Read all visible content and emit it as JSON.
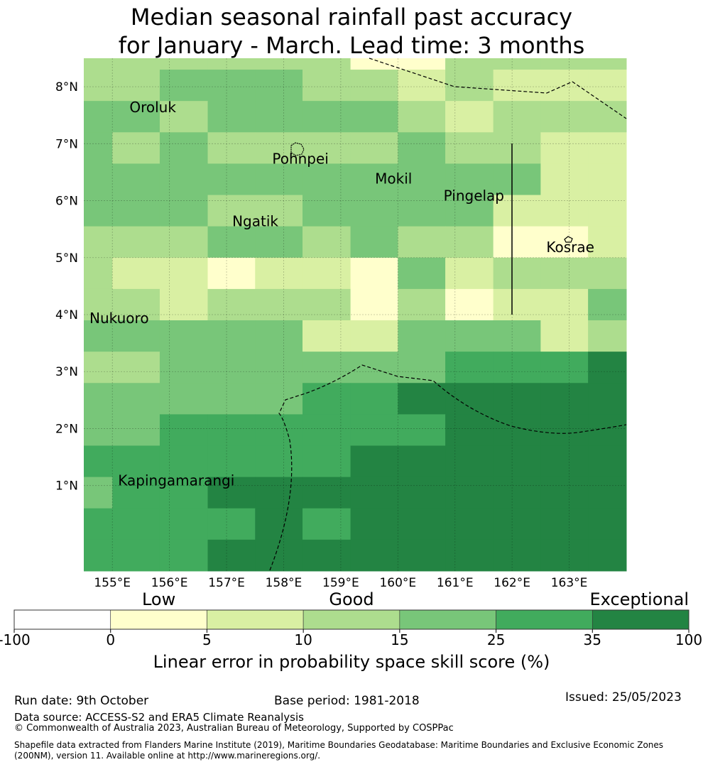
{
  "title": {
    "line1": "Median seasonal rainfall past accuracy",
    "line2": "for January - March. Lead time: 3 months"
  },
  "map": {
    "lon_range": [
      154.5,
      164.0
    ],
    "lat_range": [
      -0.5,
      8.5
    ],
    "lon_ticks": [
      "155°E",
      "156°E",
      "157°E",
      "158°E",
      "159°E",
      "160°E",
      "161°E",
      "162°E",
      "163°E"
    ],
    "lat_ticks": [
      "1°N",
      "2°N",
      "3°N",
      "4°N",
      "5°N",
      "6°N",
      "7°N",
      "8°N"
    ],
    "grid_lon_edges": [
      154.5,
      155.0,
      155.83,
      156.67,
      157.5,
      158.33,
      159.17,
      160.0,
      160.83,
      161.67,
      162.5,
      163.33,
      164.0
    ],
    "grid_lat_edges": [
      8.5,
      8.3,
      7.75,
      7.2,
      6.65,
      6.1,
      5.55,
      5.0,
      4.45,
      3.9,
      3.35,
      2.8,
      2.25,
      1.7,
      1.15,
      0.6,
      0.05,
      -0.5
    ],
    "skill_class_grid": [
      [
        3,
        3,
        3,
        3,
        3,
        3,
        1,
        1,
        3,
        3,
        3,
        3
      ],
      [
        3,
        3,
        4,
        4,
        4,
        3,
        3,
        2,
        3,
        2,
        2,
        2
      ],
      [
        4,
        4,
        3,
        4,
        4,
        4,
        4,
        3,
        2,
        3,
        3,
        3
      ],
      [
        4,
        3,
        4,
        3,
        3,
        3,
        3,
        4,
        3,
        3,
        2,
        2
      ],
      [
        4,
        4,
        4,
        4,
        4,
        4,
        4,
        4,
        4,
        4,
        2,
        2
      ],
      [
        4,
        4,
        4,
        3,
        3,
        4,
        4,
        4,
        4,
        2,
        2,
        2
      ],
      [
        3,
        3,
        3,
        4,
        4,
        3,
        4,
        3,
        3,
        1,
        1,
        2
      ],
      [
        3,
        2,
        2,
        1,
        2,
        2,
        1,
        4,
        2,
        3,
        3,
        3
      ],
      [
        3,
        3,
        2,
        3,
        3,
        3,
        1,
        3,
        1,
        2,
        2,
        4
      ],
      [
        4,
        4,
        4,
        4,
        4,
        2,
        2,
        4,
        4,
        4,
        2,
        3
      ],
      [
        3,
        3,
        4,
        4,
        4,
        4,
        4,
        4,
        5,
        5,
        5,
        6
      ],
      [
        4,
        4,
        4,
        4,
        4,
        5,
        5,
        6,
        6,
        6,
        6,
        6
      ],
      [
        4,
        4,
        5,
        5,
        5,
        5,
        5,
        5,
        6,
        6,
        6,
        6
      ],
      [
        5,
        5,
        5,
        5,
        5,
        5,
        6,
        6,
        6,
        6,
        6,
        6
      ],
      [
        4,
        5,
        5,
        6,
        6,
        6,
        6,
        6,
        6,
        6,
        6,
        6
      ],
      [
        5,
        5,
        5,
        5,
        6,
        5,
        6,
        6,
        6,
        6,
        6,
        6
      ],
      [
        5,
        5,
        5,
        6,
        6,
        6,
        6,
        6,
        6,
        6,
        6,
        6
      ]
    ],
    "places": [
      {
        "name": "Oroluk",
        "lon": 155.3,
        "lat": 7.55
      },
      {
        "name": "Pohnpei",
        "lon": 157.8,
        "lat": 6.65
      },
      {
        "name": "Mokil",
        "lon": 159.6,
        "lat": 6.3
      },
      {
        "name": "Pingelap",
        "lon": 160.8,
        "lat": 6.0
      },
      {
        "name": "Ngatik",
        "lon": 157.1,
        "lat": 5.55
      },
      {
        "name": "Kosrae",
        "lon": 162.6,
        "lat": 5.1
      },
      {
        "name": "Nukuoro",
        "lon": 154.6,
        "lat": 3.85
      },
      {
        "name": "Kapingamarangi",
        "lon": 155.1,
        "lat": 1.0
      }
    ]
  },
  "legend": {
    "categories": [
      "Low",
      "Good",
      "Exceptional"
    ],
    "boundaries": [
      "-100",
      "0",
      "5",
      "10",
      "15",
      "25",
      "35",
      "100"
    ],
    "colors": [
      "#ffffff",
      "#ffffcc",
      "#d9f0a3",
      "#addd8e",
      "#78c679",
      "#41ab5d",
      "#238443"
    ],
    "label": "Linear error in probability space skill score (%)"
  },
  "footer": {
    "run_date": "Run date: 9th October",
    "base_period": "Base period: 1981-2018",
    "issued": "Issued: 25/05/2023",
    "data_source": "Data source: ACCESS-S2 and ERA5 Climate Reanalysis",
    "copyright": "© Commonwealth of Australia 2023, Australian Bureau of Meteorology, Supported by COSPPac",
    "shapefile_line1": "Shapefile data extracted from Flanders Marine Institute (2019), Maritime Boundaries Geodatabase: Maritime Boundaries and Exclusive Economic Zones",
    "shapefile_line2": "(200NM), version 11. Available online at http://www.marineregions.org/."
  }
}
